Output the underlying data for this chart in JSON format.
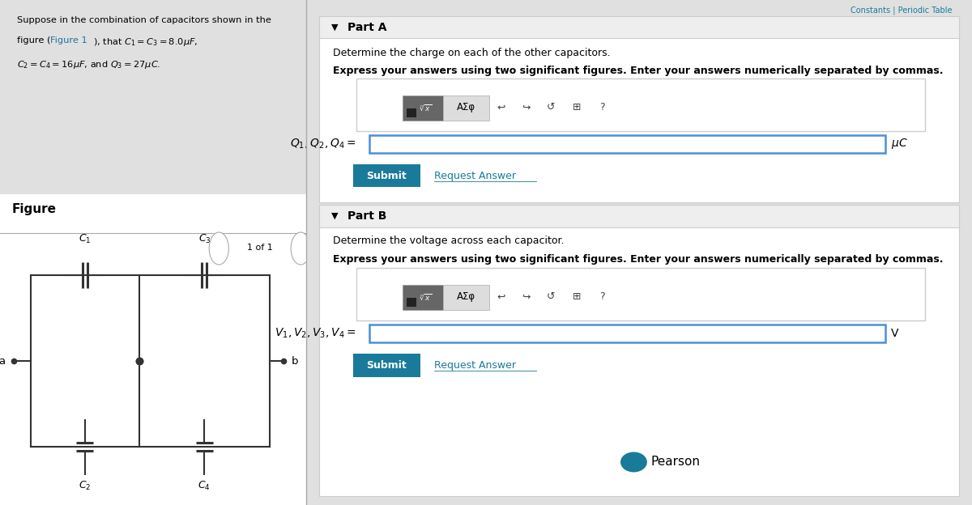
{
  "left_panel_bg": "#d6eaf8",
  "right_panel_bg": "#f5f5f5",
  "white": "#ffffff",
  "problem_text_line1": "Suppose in the combination of capacitors shown in the",
  "figure_label": "Figure",
  "page_label": "1 of 1",
  "partA_header": "Part A",
  "partA_q": "Determine the charge on each of the other capacitors.",
  "partA_bold": "Express your answers using two significant figures. Enter your answers numerically separated by commas.",
  "partA_label": "$Q_1, Q_2, Q_4 =$",
  "partA_unit": "$\\mu C$",
  "partB_header": "Part B",
  "partB_q": "Determine the voltage across each capacitor.",
  "partB_bold": "Express your answers using two significant figures. Enter your answers numerically separated by commas.",
  "partB_label": "$V_1, V_2, V_3, V_4 =$",
  "partB_unit": "V",
  "submit_color": "#1a7a9a",
  "link_color": "#1a7a9a",
  "input_border": "#4a90d9",
  "figure1_link_color": "#2471A3",
  "nav_circle_color": "#cccccc"
}
